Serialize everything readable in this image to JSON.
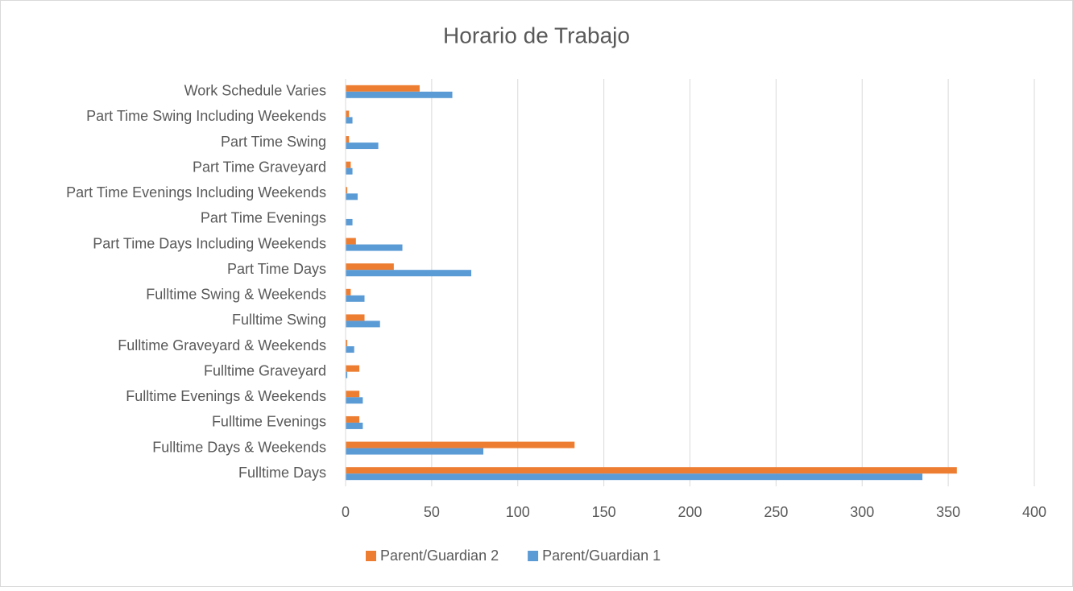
{
  "chart_data": {
    "type": "bar",
    "orientation": "horizontal",
    "title": "Horario de Trabajo",
    "categories": [
      "Fulltime Days",
      "Fulltime Days & Weekends",
      "Fulltime Evenings",
      "Fulltime Evenings & Weekends",
      "Fulltime Graveyard",
      "Fulltime Graveyard & Weekends",
      "Fulltime Swing",
      "Fulltime Swing & Weekends",
      "Part Time Days",
      "Part Time Days Including Weekends",
      "Part Time Evenings",
      "Part Time Evenings Including Weekends",
      "Part Time Graveyard",
      "Part Time Swing",
      "Part Time Swing Including Weekends",
      "Work Schedule Varies"
    ],
    "series": [
      {
        "name": "Parent/Guardian 2",
        "color": "#ed7d31",
        "values": [
          355,
          133,
          8,
          8,
          8,
          1,
          11,
          3,
          28,
          6,
          0,
          1,
          3,
          2,
          2,
          43
        ]
      },
      {
        "name": "Parent/Guardian 1",
        "color": "#5b9bd5",
        "values": [
          335,
          80,
          10,
          10,
          1,
          5,
          20,
          11,
          73,
          33,
          4,
          7,
          4,
          19,
          4,
          62
        ]
      }
    ],
    "xlim": [
      0,
      400
    ],
    "xticks": [
      0,
      50,
      100,
      150,
      200,
      250,
      300,
      350,
      400
    ],
    "grid": true,
    "legend": "bottom"
  }
}
